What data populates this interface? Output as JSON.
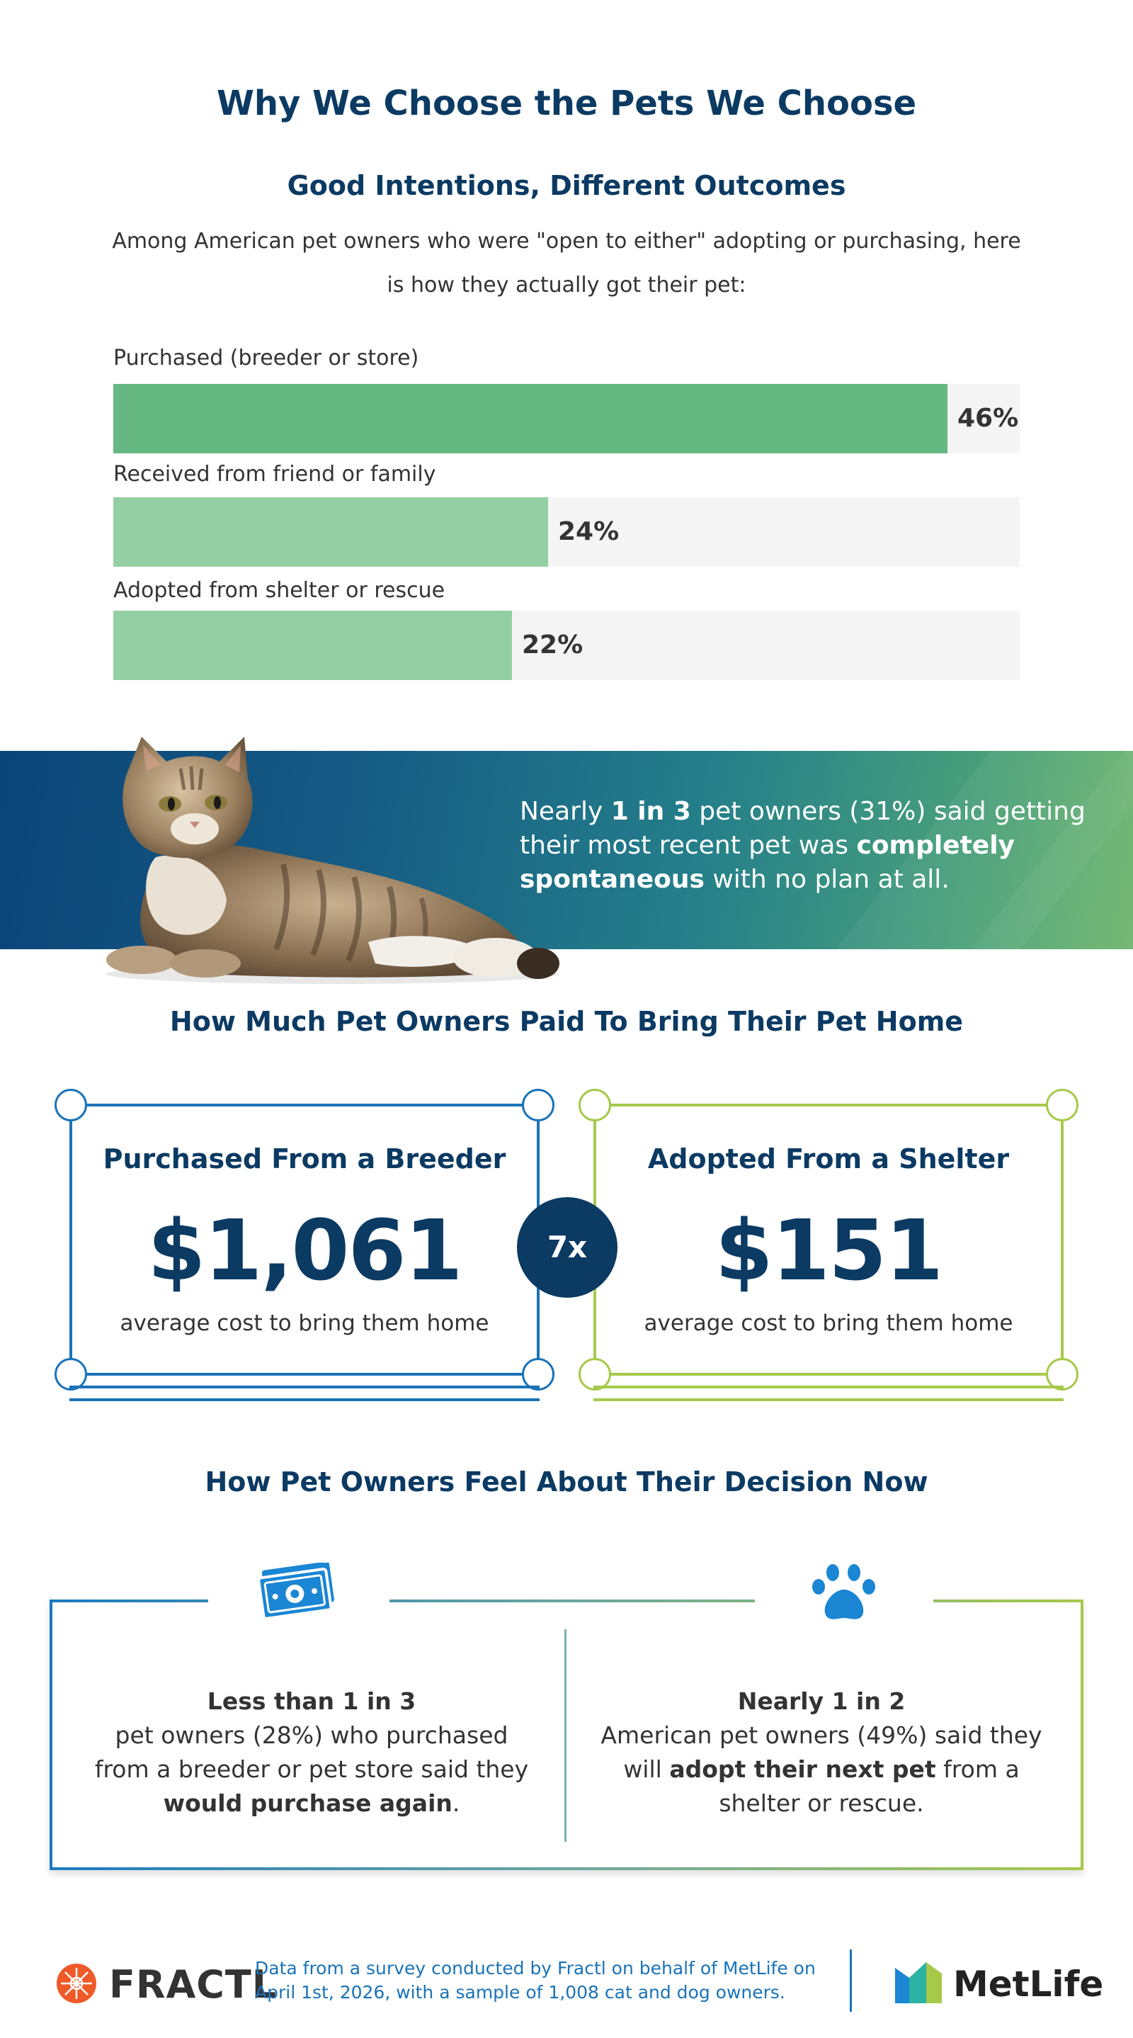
{
  "header": {
    "title": "Why We Choose the Pets We Choose",
    "subtitle": "Good Intentions, Different Outcomes",
    "intro_line1": "Among American pet owners who were \"open to either\" adopting or purchasing, here",
    "intro_line2": "is how they actually got their pet:"
  },
  "chart_data": {
    "type": "bar",
    "categories": [
      "Purchased (breeder or store)",
      "Received from friend or family",
      "Adopted from shelter or rescue"
    ],
    "values": [
      46,
      24,
      22
    ],
    "value_labels": [
      "46%",
      "24%",
      "22%"
    ],
    "xlim": [
      0,
      50
    ],
    "colors": [
      "#66b882",
      "#94cfa3",
      "#94cfa3"
    ],
    "track_color": "#f4f4f4"
  },
  "banner": {
    "text_pre": "Nearly ",
    "bold1": "1 in 3",
    "text_mid1": " pet owners (31%) said getting their most recent pet was ",
    "bold2": "completely spontaneous",
    "text_post": " with no plan at all."
  },
  "cost": {
    "heading": "How Much Pet Owners Paid To Bring Their Pet Home",
    "breeder": {
      "title": "Purchased From a Breeder",
      "amount": "$1,061",
      "caption": "average cost to bring them home",
      "color": "#1a73b8"
    },
    "shelter": {
      "title": "Adopted From a Shelter",
      "amount": "$151",
      "caption": "average cost to bring them home",
      "color": "#a6c94a"
    },
    "ratio": "7x"
  },
  "feel": {
    "heading": "How Pet Owners Feel About Their Decision Now",
    "left": {
      "icon": "money-icon",
      "bold_line": "Less than 1 in 3",
      "text1": "pet owners (28%) who purchased",
      "text2": "from a breeder or pet store said they",
      "bold_end": "would purchase again",
      "period": "."
    },
    "right": {
      "icon": "paw-icon",
      "bold_line": "Nearly 1 in 2",
      "text1": "American pet owners (49%) said they",
      "text2_pre": "will ",
      "bold_mid": "adopt their next pet",
      "text2_post": " from a",
      "text3": "shelter or rescue."
    }
  },
  "footer": {
    "fractl": "FRACTL",
    "note_line1": "Data from a survey conducted by Fractl on behalf of MetLife on",
    "note_line2": "April 1st, 2026, with a sample of 1,008 cat and dog owners.",
    "metlife": "MetLife"
  },
  "colors": {
    "navy": "#0b3a63",
    "blue": "#1a73b8",
    "green": "#a6c94a",
    "bar_dark": "#66b882",
    "bar_light": "#94cfa3"
  }
}
